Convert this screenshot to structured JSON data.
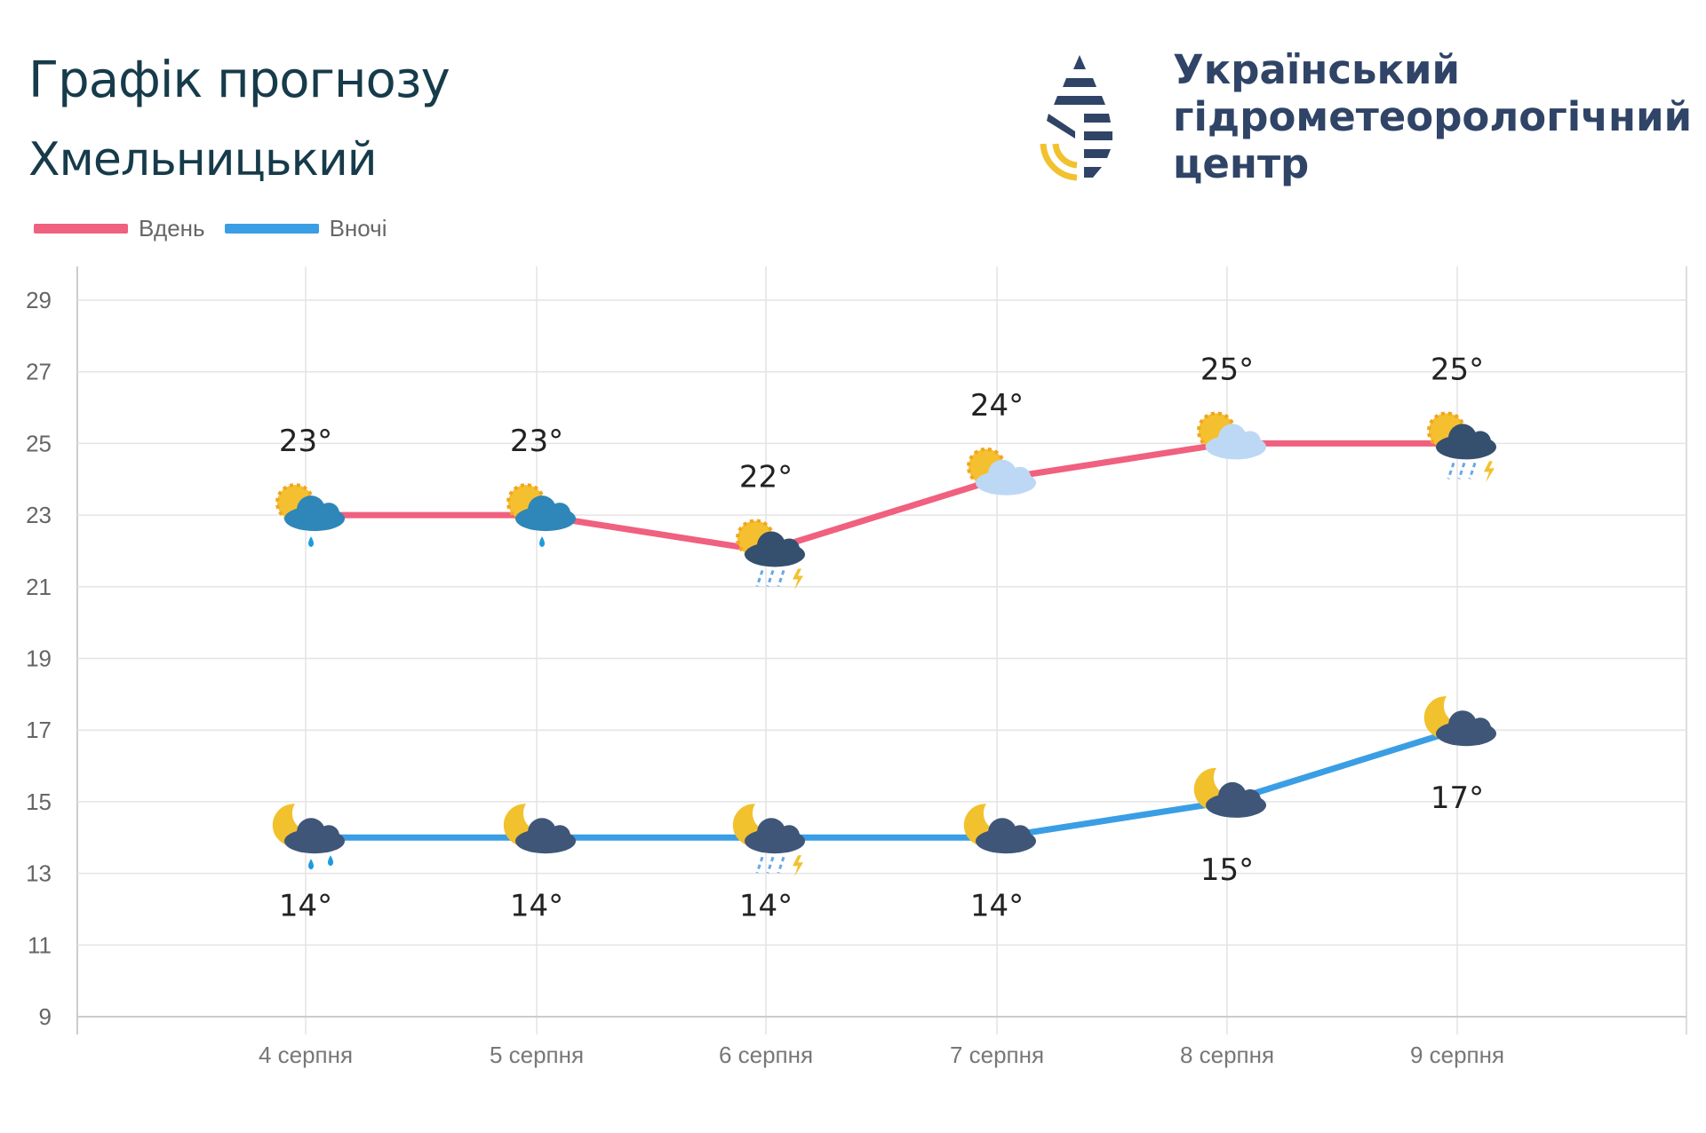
{
  "header": {
    "title": "Графік прогнозу",
    "city": "Хмельницький"
  },
  "logo": {
    "lines": [
      "Український",
      "гідрометеорологічний",
      "центр"
    ]
  },
  "legend": [
    {
      "label": "Вдень",
      "color": "#f0607f"
    },
    {
      "label": "Вночі",
      "color": "#3a9ee4"
    }
  ],
  "chart_data": {
    "type": "line",
    "categories": [
      "4 серпня",
      "5 серпня",
      "6 серпня",
      "7 серпня",
      "8 серпня",
      "9 серпня"
    ],
    "ylim": [
      9,
      29
    ],
    "yticks": [
      9,
      11,
      13,
      15,
      17,
      19,
      21,
      23,
      25,
      27,
      29
    ],
    "grid": true,
    "legend_position": "top-left",
    "series": [
      {
        "name": "Вдень",
        "color": "#f0607f",
        "values": [
          23,
          23,
          22,
          24,
          25,
          25
        ],
        "labels": [
          "23°",
          "23°",
          "22°",
          "24°",
          "25°",
          "25°"
        ],
        "icons": [
          "sun-cloud-rain",
          "sun-cloud-rain",
          "sun-cloud-thunderstorm",
          "sun-cloud",
          "sun-cloud",
          "sun-cloud-thunderstorm"
        ]
      },
      {
        "name": "Вночі",
        "color": "#3a9ee4",
        "values": [
          14,
          14,
          14,
          14,
          15,
          17
        ],
        "labels": [
          "14°",
          "14°",
          "14°",
          "14°",
          "15°",
          "17°"
        ],
        "icons": [
          "moon-cloud-rain",
          "moon-cloud",
          "moon-cloud-thunderstorm",
          "moon-cloud",
          "moon-cloud",
          "moon-cloud"
        ]
      }
    ]
  }
}
